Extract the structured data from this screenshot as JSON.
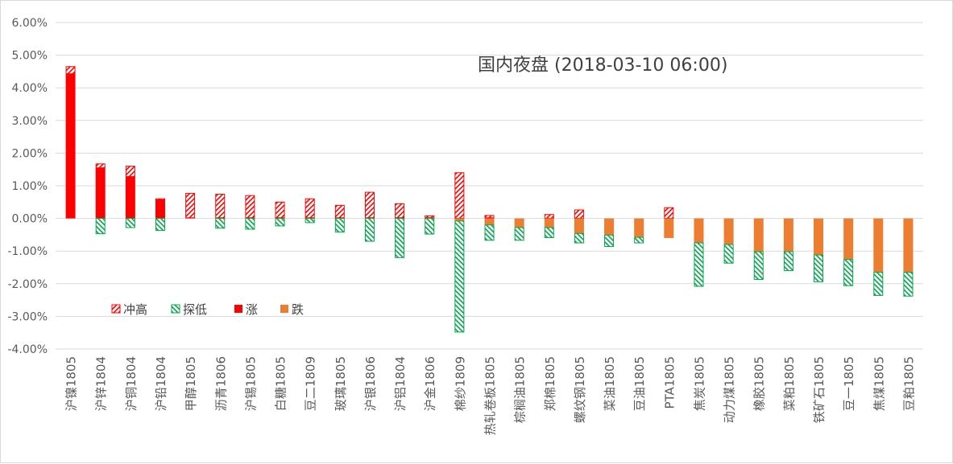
{
  "chart_data": {
    "type": "bar",
    "title": "国内夜盘 (2018-03-10 06:00)",
    "xlabel": "",
    "ylabel": "",
    "ylim": [
      -4,
      6
    ],
    "yticks": [
      "6.00%",
      "5.00%",
      "4.00%",
      "3.00%",
      "2.00%",
      "1.00%",
      "0.00%",
      "-1.00%",
      "-2.00%",
      "-3.00%",
      "-4.00%"
    ],
    "grid": true,
    "legend_position": "left-inside-bottom",
    "categories": [
      "沪镍1805",
      "沪锌1804",
      "沪铜1804",
      "沪铅1804",
      "甲醇1805",
      "沥青1806",
      "沪锡1805",
      "白糖1805",
      "豆二1809",
      "玻璃1805",
      "沪银1806",
      "沪铝1804",
      "沪金1806",
      "棉纱1809",
      "热轧卷板1805",
      "棕榈油1805",
      "郑棉1805",
      "螺纹钢1805",
      "菜油1805",
      "豆油1805",
      "PTA1805",
      "焦炭1805",
      "动力煤1805",
      "橡胶1805",
      "菜粕1805",
      "铁矿石1805",
      "豆一1805",
      "焦煤1805",
      "豆粕1805"
    ],
    "series": [
      {
        "name": "冲高",
        "values": [
          0.22,
          0.12,
          0.32,
          0.03,
          0.75,
          0.72,
          0.68,
          0.48,
          0.58,
          0.38,
          0.78,
          0.43,
          0.06,
          1.4,
          0.07,
          0.0,
          0.12,
          0.26,
          0.0,
          0.0,
          0.33,
          0.0,
          0.0,
          0.0,
          0.0,
          0.0,
          0.0,
          0.0,
          0.0
        ]
      },
      {
        "name": "探低",
        "values": [
          0.0,
          -0.47,
          -0.28,
          -0.37,
          0.0,
          -0.3,
          -0.33,
          -0.23,
          -0.13,
          -0.42,
          -0.7,
          -1.2,
          -0.48,
          -3.4,
          -0.47,
          -0.39,
          -0.31,
          -0.29,
          -0.35,
          -0.17,
          0.0,
          -1.33,
          -0.57,
          -0.85,
          -0.58,
          -0.82,
          -0.8,
          -0.71,
          -0.73
        ]
      },
      {
        "name": "涨",
        "values": [
          4.43,
          1.55,
          1.28,
          0.57,
          0.02,
          0.02,
          0.02,
          0.02,
          0.02,
          0.02,
          0.02,
          0.02,
          0.02,
          0.0,
          0.02,
          0.0,
          0.0,
          0.0,
          0.0,
          0.0,
          0.0,
          0.0,
          0.0,
          0.0,
          0.0,
          0.0,
          0.0,
          0.0,
          0.0
        ]
      },
      {
        "name": "跌",
        "values": [
          0.0,
          0.0,
          0.0,
          0.0,
          0.0,
          0.0,
          0.0,
          0.0,
          0.0,
          0.0,
          0.0,
          0.0,
          0.0,
          -0.08,
          -0.2,
          -0.28,
          -0.28,
          -0.46,
          -0.51,
          -0.58,
          -0.6,
          -0.75,
          -0.8,
          -1.02,
          -1.02,
          -1.12,
          -1.26,
          -1.65,
          -1.65
        ]
      }
    ],
    "colors": {
      "冲高": "#ff0000",
      "探低": "#00a84a",
      "涨": "#ff0000",
      "跌": "#ed7d31",
      "grid": "#d9d9d9",
      "axis_text": "#595959"
    }
  }
}
